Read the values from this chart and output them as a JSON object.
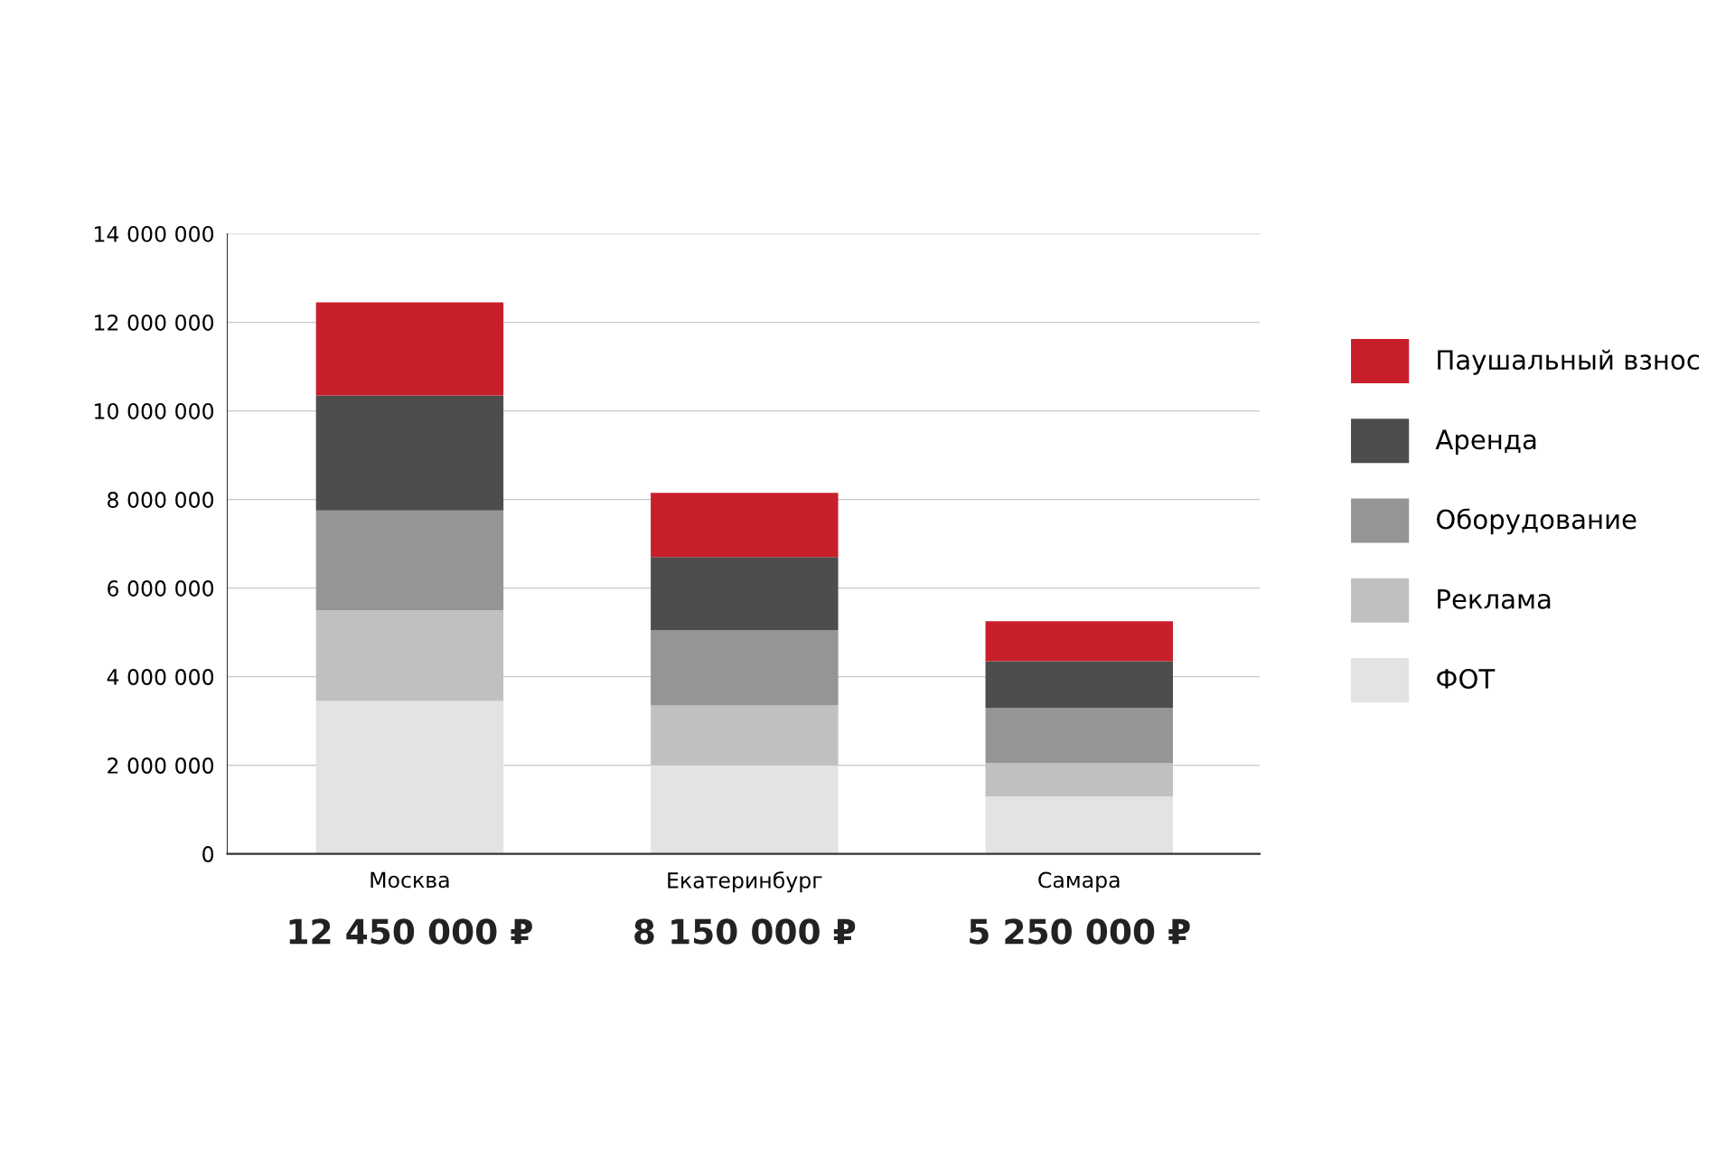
{
  "chart_data": {
    "type": "bar",
    "stacked": true,
    "categories": [
      "Москва",
      "Екатеринбург",
      "Самара"
    ],
    "series": [
      {
        "name": "ФОТ",
        "color": "#e3e3e5",
        "values": [
          3450000,
          2000000,
          1300000
        ]
      },
      {
        "name": "Реклама",
        "color": "#c0c0c1",
        "values": [
          2050000,
          1350000,
          750000
        ]
      },
      {
        "name": "Оборудование",
        "color": "#959595",
        "values": [
          2250000,
          1700000,
          1250000
        ]
      },
      {
        "name": "Аренда",
        "color": "#4d4d4d",
        "values": [
          2600000,
          1650000,
          1050000
        ]
      },
      {
        "name": "Паушальный взнос",
        "color": "#c8202b",
        "values": [
          2100000,
          1450000,
          900000
        ]
      }
    ],
    "totals": [
      "12 450 000 ₽",
      "8 150 000 ₽",
      "5 250 000 ₽"
    ],
    "ylim": [
      0,
      14000000
    ],
    "yticks": [
      {
        "value": 0,
        "label": "0"
      },
      {
        "value": 2000000,
        "label": "2 000 000"
      },
      {
        "value": 4000000,
        "label": "4 000 000"
      },
      {
        "value": 6000000,
        "label": "6 000 000"
      },
      {
        "value": 8000000,
        "label": "8 000 000"
      },
      {
        "value": 10000000,
        "label": "10 000 000"
      },
      {
        "value": 12000000,
        "label": "12 000 000"
      },
      {
        "value": 14000000,
        "label": "14 000 000"
      }
    ],
    "grid": "y",
    "legend": "right"
  }
}
